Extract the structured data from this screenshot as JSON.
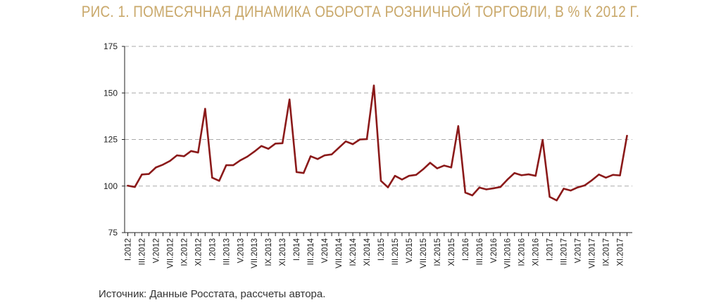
{
  "header": {
    "title": "РИС. 1. ПОМЕСЯЧНАЯ ДИНАМИКА ОБОРОТА РОЗНИЧНОЙ ТОРГОВЛИ, В % К 2012 Г."
  },
  "footer": {
    "source": "Источник: Данные Росстата, рассчеты автора."
  },
  "colors": {
    "line": "#8b1a1a",
    "grid": "#aaaaaa",
    "title": "#c9a86a",
    "axis": "#222222"
  },
  "chart_data": {
    "type": "line",
    "title": "РИС. 1. ПОМЕСЯЧНАЯ ДИНАМИКА ОБОРОТА РОЗНИЧНОЙ ТОРГОВЛИ, В % К 2012 Г.",
    "xlabel": "",
    "ylabel": "",
    "ylim": [
      75,
      175
    ],
    "yticks": [
      75,
      100,
      125,
      150,
      175
    ],
    "grid": "horizontal dashed",
    "x_tick_labels": [
      "I.2012",
      "III.2012",
      "V.2012",
      "VII.2012",
      "IX.2012",
      "XI.2012",
      "I.2013",
      "III.2013",
      "V.2013",
      "VII.2013",
      "IX.2013",
      "XI.2013",
      "I.2014",
      "III.2014",
      "V.2014",
      "VII.2014",
      "IX.2014",
      "XI.2014",
      "I.2015",
      "III.2015",
      "V.2015",
      "VII.2015",
      "IX.2015",
      "XI.2015",
      "I.2016",
      "III.2016",
      "V.2016",
      "VII.2016",
      "IX.2016",
      "XI.2016",
      "I.2017",
      "III.2017",
      "V.2017",
      "VII.2017",
      "IX.2017",
      "XI.2017"
    ],
    "series": [
      {
        "values": [
          100.2,
          99.5,
          106.2,
          106.5,
          110.0,
          111.5,
          113.5,
          116.5,
          116.0,
          118.8,
          118.0,
          141.5,
          104.5,
          102.8,
          111.2,
          111.2,
          113.8,
          115.8,
          118.5,
          121.5,
          120.0,
          122.8,
          123.0,
          146.5,
          107.5,
          107.0,
          116.0,
          114.5,
          116.5,
          117.0,
          120.5,
          124.0,
          122.5,
          125.0,
          125.2,
          154.0,
          102.8,
          99.3,
          105.5,
          103.5,
          105.5,
          106.0,
          109.0,
          112.5,
          109.5,
          111.0,
          110.0,
          132.2,
          96.5,
          95.0,
          99.2,
          98.2,
          98.8,
          99.5,
          103.5,
          107.0,
          105.8,
          106.3,
          105.5,
          124.8,
          94.2,
          92.3,
          98.6,
          97.6,
          99.3,
          100.4,
          103.1,
          106.2,
          104.5,
          106.0,
          105.7,
          127.0
        ]
      }
    ]
  }
}
